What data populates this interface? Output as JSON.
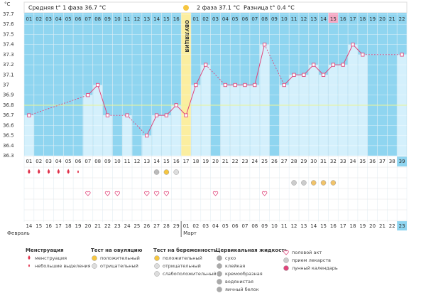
{
  "header": {
    "phase1": "Средняя t° 1 фаза 36.7 °C",
    "phase2": "2 фаза 37.1 °C",
    "difference": "Разница t° 0.4 °C"
  },
  "chart_data": {
    "type": "line",
    "y_label": "°C",
    "color": "#e0457b",
    "ylim": [
      36.3,
      37.7
    ],
    "yticks": [
      36.3,
      36.4,
      36.5,
      36.6,
      36.7,
      36.8,
      36.9,
      37,
      37.1,
      37.2,
      37.3,
      37.4,
      37.5,
      37.6,
      37.7
    ],
    "grid": true,
    "coverline": 36.8,
    "ovulation_label": "ОВУЛЯЦИЯ",
    "categories": [
      "01",
      "02",
      "03",
      "04",
      "05",
      "06",
      "07",
      "08",
      "09",
      "10",
      "11",
      "12",
      "13",
      "14",
      "15",
      "16",
      "17",
      "18",
      "19",
      "20",
      "21",
      "22",
      "23",
      "24",
      "25",
      "26",
      "27",
      "28",
      "29",
      "30",
      "31",
      "32",
      "33",
      "34",
      "35",
      "36",
      "37",
      "38",
      "39"
    ],
    "phase_days": [
      "01",
      "02",
      "03",
      "04",
      "05",
      "06",
      "07",
      "08",
      "09",
      "10",
      "11",
      "12",
      "13",
      "14",
      "15",
      "16",
      null,
      "01",
      "02",
      "03",
      "04",
      "05",
      "06",
      "07",
      "08",
      "09",
      "10",
      "11",
      "12",
      "13",
      "14",
      "15",
      "16",
      "17",
      "18",
      "19",
      "20",
      "21",
      "22"
    ],
    "dates": [
      "14",
      "15",
      "16",
      "17",
      "18",
      "19",
      "20",
      "21",
      "22",
      "23",
      "24",
      "25",
      "26",
      "27",
      "28",
      "29",
      "01",
      "02",
      "03",
      "04",
      "05",
      "06",
      "07",
      "08",
      "09",
      "10",
      "11",
      "12",
      "13",
      "14",
      "15",
      "16",
      "17",
      "18",
      "19",
      "20",
      "21",
      "22",
      "23"
    ],
    "months": [
      "Февраль",
      "Март"
    ],
    "values": [
      36.7,
      null,
      null,
      null,
      null,
      null,
      36.9,
      37.0,
      36.7,
      null,
      36.7,
      null,
      36.5,
      36.7,
      36.7,
      36.8,
      36.7,
      37.0,
      37.2,
      null,
      37.0,
      37.0,
      37.0,
      37.0,
      37.4,
      null,
      37.0,
      37.1,
      37.1,
      37.2,
      37.1,
      37.2,
      37.2,
      37.4,
      37.3,
      null,
      null,
      null,
      37.3
    ]
  },
  "legend": [
    {
      "title": "Менструация",
      "items": [
        "менструация",
        "небольшие выделения"
      ]
    },
    {
      "title": "Тест на овуляцию",
      "items": [
        "положительный",
        "отрицательный"
      ]
    },
    {
      "title": "Тест на беременность",
      "items": [
        "положительный",
        "отрицательный",
        "слабоположительный"
      ]
    },
    {
      "title": "Цервикальная жидкость",
      "items": [
        "сухо",
        "клейкая",
        "кремообразная",
        "водянистая",
        "яичный белок"
      ]
    },
    {
      "items": [
        "половой акт",
        "прием лекарств",
        "лунный календарь"
      ]
    }
  ]
}
